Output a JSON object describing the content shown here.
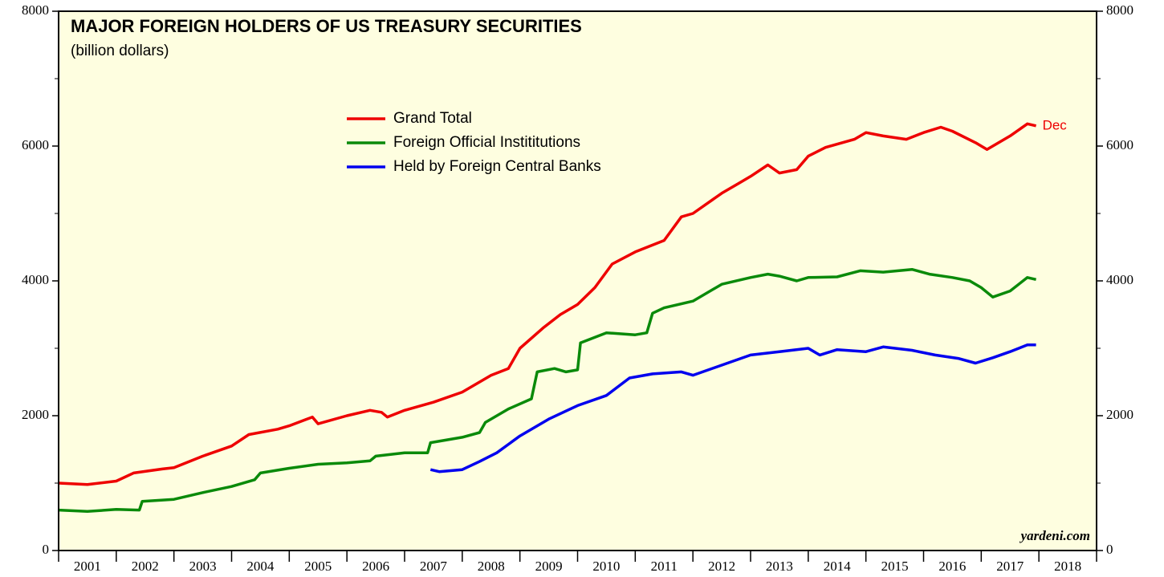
{
  "chart_data": {
    "type": "line",
    "title": "MAJOR FOREIGN HOLDERS OF US TREASURY SECURITIES",
    "subtitle": "(billion dollars)",
    "annotation": "Dec",
    "source": "yardeni.com",
    "legend": "top-center",
    "categories": [
      "2001",
      "2002",
      "2003",
      "2004",
      "2005",
      "2006",
      "2007",
      "2008",
      "2009",
      "2010",
      "2011",
      "2012",
      "2013",
      "2014",
      "2015",
      "2016",
      "2017",
      "2018"
    ],
    "xlim": [
      2001,
      2019
    ],
    "xticks": [
      2001,
      2002,
      2003,
      2004,
      2005,
      2006,
      2007,
      2008,
      2009,
      2010,
      2011,
      2012,
      2013,
      2014,
      2015,
      2016,
      2017,
      2018,
      2019
    ],
    "ylim": [
      0,
      8000
    ],
    "yticks": [
      0,
      2000,
      4000,
      6000,
      8000
    ],
    "yminor": [
      1000,
      3000,
      5000,
      7000
    ],
    "series": [
      {
        "name": "Grand Total",
        "color": "#ee0000",
        "x": [
          2001.0,
          2001.5,
          2002.0,
          2002.3,
          2002.8,
          2003.0,
          2003.5,
          2004.0,
          2004.3,
          2004.8,
          2005.0,
          2005.4,
          2005.5,
          2006.0,
          2006.4,
          2006.6,
          2006.7,
          2007.0,
          2007.5,
          2008.0,
          2008.5,
          2008.8,
          2009.0,
          2009.4,
          2009.7,
          2010.0,
          2010.3,
          2010.6,
          2011.0,
          2011.5,
          2011.8,
          2012.0,
          2012.5,
          2012.8,
          2013.0,
          2013.3,
          2013.5,
          2013.8,
          2014.0,
          2014.3,
          2014.8,
          2015.0,
          2015.3,
          2015.7,
          2016.0,
          2016.3,
          2016.5,
          2016.9,
          2017.1,
          2017.5,
          2017.8,
          2017.95
        ],
        "values": [
          1000,
          980,
          1030,
          1150,
          1210,
          1230,
          1400,
          1550,
          1720,
          1800,
          1850,
          1980,
          1880,
          2000,
          2080,
          2050,
          1980,
          2080,
          2200,
          2350,
          2600,
          2700,
          3000,
          3300,
          3500,
          3650,
          3900,
          4250,
          4430,
          4600,
          4950,
          5000,
          5300,
          5450,
          5550,
          5720,
          5600,
          5650,
          5850,
          5980,
          6100,
          6200,
          6150,
          6100,
          6200,
          6280,
          6220,
          6050,
          5950,
          6150,
          6330,
          6300
        ]
      },
      {
        "name": "Foreign Official Instititutions",
        "color": "#0a8a0a",
        "x": [
          2001.0,
          2001.5,
          2002.0,
          2002.4,
          2002.45,
          2003.0,
          2003.5,
          2004.0,
          2004.4,
          2004.5,
          2005.0,
          2005.5,
          2006.0,
          2006.4,
          2006.5,
          2007.0,
          2007.4,
          2007.45,
          2008.0,
          2008.3,
          2008.4,
          2008.8,
          2009.2,
          2009.3,
          2009.6,
          2009.8,
          2010.0,
          2010.05,
          2010.5,
          2011.0,
          2011.2,
          2011.3,
          2011.5,
          2012.0,
          2012.5,
          2013.0,
          2013.3,
          2013.5,
          2013.8,
          2014.0,
          2014.5,
          2014.9,
          2015.3,
          2015.8,
          2016.1,
          2016.5,
          2016.8,
          2017.0,
          2017.2,
          2017.5,
          2017.8,
          2017.95
        ],
        "values": [
          600,
          580,
          610,
          600,
          730,
          760,
          860,
          950,
          1050,
          1150,
          1220,
          1280,
          1300,
          1330,
          1400,
          1450,
          1450,
          1600,
          1680,
          1750,
          1900,
          2100,
          2250,
          2650,
          2700,
          2650,
          2680,
          3080,
          3230,
          3200,
          3230,
          3520,
          3600,
          3700,
          3950,
          4050,
          4100,
          4070,
          4000,
          4050,
          4060,
          4150,
          4130,
          4170,
          4100,
          4050,
          4000,
          3900,
          3760,
          3850,
          4050,
          4020
        ]
      },
      {
        "name": "Held by Foreign Central Banks",
        "color": "#0000ee",
        "x": [
          2007.45,
          2007.6,
          2008.0,
          2008.3,
          2008.6,
          2009.0,
          2009.5,
          2010.0,
          2010.5,
          2010.9,
          2011.3,
          2011.8,
          2012.0,
          2012.5,
          2013.0,
          2013.5,
          2014.0,
          2014.2,
          2014.5,
          2015.0,
          2015.3,
          2015.8,
          2016.2,
          2016.6,
          2016.9,
          2017.2,
          2017.5,
          2017.8,
          2017.95
        ],
        "values": [
          1200,
          1170,
          1200,
          1320,
          1450,
          1700,
          1950,
          2150,
          2300,
          2560,
          2620,
          2650,
          2600,
          2750,
          2900,
          2950,
          3000,
          2900,
          2980,
          2950,
          3020,
          2970,
          2900,
          2850,
          2780,
          2860,
          2950,
          3050,
          3050
        ]
      }
    ]
  }
}
